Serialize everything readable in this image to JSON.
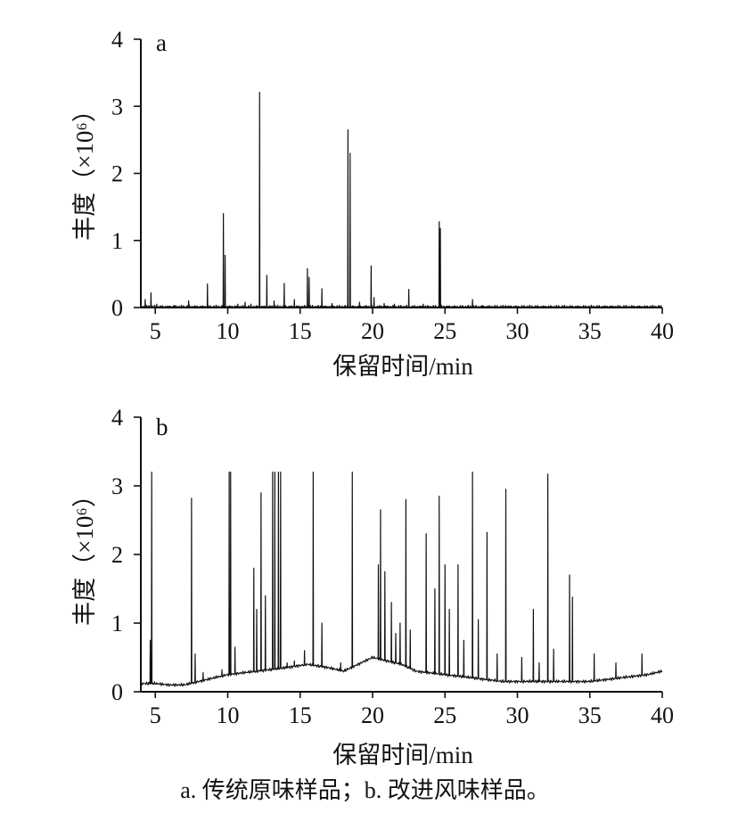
{
  "caption": "a. 传统原味样品；b. 改进风味样品。",
  "chart_data": [
    {
      "type": "line",
      "panel_label": "a",
      "xlabel": "保留时间/min",
      "ylabel": "丰度（×10⁶）",
      "xlim": [
        4,
        40
      ],
      "ylim": [
        0,
        4
      ],
      "xticks": [
        5,
        10,
        15,
        20,
        25,
        30,
        35,
        40
      ],
      "yticks": [
        0,
        1,
        2,
        3,
        4
      ],
      "grid": false,
      "baseline": 0.01,
      "peaks": [
        {
          "x": 4.3,
          "y": 0.12
        },
        {
          "x": 4.7,
          "y": 0.22
        },
        {
          "x": 5.1,
          "y": 0.05
        },
        {
          "x": 6.3,
          "y": 0.03
        },
        {
          "x": 7.3,
          "y": 0.1
        },
        {
          "x": 8.6,
          "y": 0.35
        },
        {
          "x": 9.7,
          "y": 1.4
        },
        {
          "x": 9.82,
          "y": 0.78
        },
        {
          "x": 10.7,
          "y": 0.05
        },
        {
          "x": 11.2,
          "y": 0.08
        },
        {
          "x": 11.6,
          "y": 0.05
        },
        {
          "x": 12.2,
          "y": 3.21
        },
        {
          "x": 12.7,
          "y": 0.48
        },
        {
          "x": 13.2,
          "y": 0.1
        },
        {
          "x": 13.9,
          "y": 0.36
        },
        {
          "x": 14.6,
          "y": 0.12
        },
        {
          "x": 15.5,
          "y": 0.58
        },
        {
          "x": 15.62,
          "y": 0.45
        },
        {
          "x": 16.5,
          "y": 0.28
        },
        {
          "x": 17.2,
          "y": 0.06
        },
        {
          "x": 18.3,
          "y": 2.65
        },
        {
          "x": 18.45,
          "y": 2.3
        },
        {
          "x": 19.1,
          "y": 0.08
        },
        {
          "x": 19.9,
          "y": 0.62
        },
        {
          "x": 20.1,
          "y": 0.15
        },
        {
          "x": 20.8,
          "y": 0.06
        },
        {
          "x": 21.5,
          "y": 0.05
        },
        {
          "x": 22.5,
          "y": 0.27
        },
        {
          "x": 23.5,
          "y": 0.05
        },
        {
          "x": 24.6,
          "y": 1.28
        },
        {
          "x": 24.68,
          "y": 1.18
        },
        {
          "x": 26.9,
          "y": 0.12
        },
        {
          "x": 27.6,
          "y": 0.03
        },
        {
          "x": 29.2,
          "y": 0.03
        },
        {
          "x": 38.8,
          "y": 0.01
        }
      ]
    },
    {
      "type": "line",
      "panel_label": "b",
      "xlabel": "保留时间/min",
      "ylabel": "丰度（×10⁶）",
      "xlim": [
        4,
        40
      ],
      "ylim": [
        0,
        4
      ],
      "xticks": [
        5,
        10,
        15,
        20,
        25,
        30,
        35,
        40
      ],
      "yticks": [
        0,
        1,
        2,
        3,
        4
      ],
      "grid": false,
      "baseline": [
        {
          "x": 4.0,
          "y": 0.12
        },
        {
          "x": 5.0,
          "y": 0.12
        },
        {
          "x": 6.0,
          "y": 0.1
        },
        {
          "x": 7.0,
          "y": 0.1
        },
        {
          "x": 8.0,
          "y": 0.15
        },
        {
          "x": 9.0,
          "y": 0.2
        },
        {
          "x": 10.0,
          "y": 0.25
        },
        {
          "x": 12.0,
          "y": 0.3
        },
        {
          "x": 14.0,
          "y": 0.35
        },
        {
          "x": 15.5,
          "y": 0.4
        },
        {
          "x": 17.0,
          "y": 0.35
        },
        {
          "x": 18.0,
          "y": 0.3
        },
        {
          "x": 19.0,
          "y": 0.4
        },
        {
          "x": 20.0,
          "y": 0.5
        },
        {
          "x": 21.0,
          "y": 0.45
        },
        {
          "x": 22.0,
          "y": 0.4
        },
        {
          "x": 23.0,
          "y": 0.3
        },
        {
          "x": 25.0,
          "y": 0.25
        },
        {
          "x": 27.0,
          "y": 0.2
        },
        {
          "x": 29.0,
          "y": 0.15
        },
        {
          "x": 31.0,
          "y": 0.15
        },
        {
          "x": 33.0,
          "y": 0.15
        },
        {
          "x": 35.0,
          "y": 0.15
        },
        {
          "x": 37.0,
          "y": 0.2
        },
        {
          "x": 39.0,
          "y": 0.25
        },
        {
          "x": 40.0,
          "y": 0.3
        }
      ],
      "peaks": [
        {
          "x": 4.65,
          "y": 0.75
        },
        {
          "x": 4.75,
          "y": 3.2
        },
        {
          "x": 7.5,
          "y": 2.82
        },
        {
          "x": 7.75,
          "y": 0.55
        },
        {
          "x": 8.3,
          "y": 0.28
        },
        {
          "x": 9.6,
          "y": 0.32
        },
        {
          "x": 10.1,
          "y": 3.2
        },
        {
          "x": 10.2,
          "y": 3.2
        },
        {
          "x": 10.5,
          "y": 0.65
        },
        {
          "x": 11.8,
          "y": 1.8
        },
        {
          "x": 12.0,
          "y": 1.2
        },
        {
          "x": 12.3,
          "y": 2.9
        },
        {
          "x": 12.6,
          "y": 1.4
        },
        {
          "x": 13.1,
          "y": 3.2
        },
        {
          "x": 13.25,
          "y": 3.2
        },
        {
          "x": 13.5,
          "y": 3.2
        },
        {
          "x": 13.65,
          "y": 3.2
        },
        {
          "x": 14.1,
          "y": 0.42
        },
        {
          "x": 14.6,
          "y": 0.45
        },
        {
          "x": 15.3,
          "y": 0.6
        },
        {
          "x": 15.9,
          "y": 3.2
        },
        {
          "x": 16.5,
          "y": 1.0
        },
        {
          "x": 17.8,
          "y": 0.42
        },
        {
          "x": 18.6,
          "y": 3.2
        },
        {
          "x": 20.4,
          "y": 1.85
        },
        {
          "x": 20.55,
          "y": 2.65
        },
        {
          "x": 20.85,
          "y": 1.75
        },
        {
          "x": 21.3,
          "y": 1.3
        },
        {
          "x": 21.6,
          "y": 0.85
        },
        {
          "x": 21.9,
          "y": 1.0
        },
        {
          "x": 22.3,
          "y": 2.8
        },
        {
          "x": 22.6,
          "y": 0.9
        },
        {
          "x": 23.7,
          "y": 2.3
        },
        {
          "x": 24.3,
          "y": 1.5
        },
        {
          "x": 24.6,
          "y": 2.85
        },
        {
          "x": 25.0,
          "y": 1.85
        },
        {
          "x": 25.3,
          "y": 1.2
        },
        {
          "x": 25.9,
          "y": 1.85
        },
        {
          "x": 26.3,
          "y": 0.75
        },
        {
          "x": 26.9,
          "y": 3.2
        },
        {
          "x": 27.3,
          "y": 1.05
        },
        {
          "x": 27.9,
          "y": 2.32
        },
        {
          "x": 28.6,
          "y": 0.55
        },
        {
          "x": 29.2,
          "y": 2.95
        },
        {
          "x": 30.3,
          "y": 0.5
        },
        {
          "x": 31.1,
          "y": 1.2
        },
        {
          "x": 31.5,
          "y": 0.42
        },
        {
          "x": 32.1,
          "y": 3.17
        },
        {
          "x": 32.5,
          "y": 0.62
        },
        {
          "x": 33.6,
          "y": 1.7
        },
        {
          "x": 33.8,
          "y": 1.38
        },
        {
          "x": 35.3,
          "y": 0.55
        },
        {
          "x": 36.8,
          "y": 0.42
        },
        {
          "x": 38.6,
          "y": 0.55
        }
      ]
    }
  ]
}
